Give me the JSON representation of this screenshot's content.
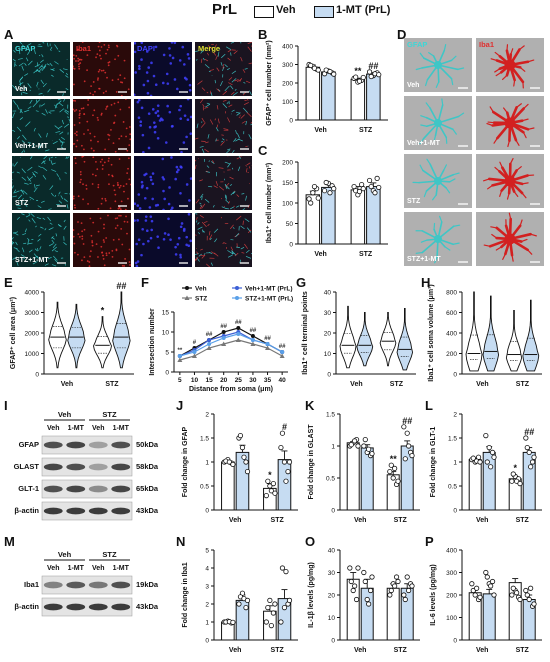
{
  "figure": {
    "title": "PrL",
    "legend": [
      {
        "label": "Veh",
        "color": "#ffffff"
      },
      {
        "label": "1-MT (PrL)",
        "color": "#c6dcf2"
      }
    ],
    "panel_letters": [
      "A",
      "B",
      "C",
      "D",
      "E",
      "F",
      "G",
      "H",
      "I",
      "J",
      "K",
      "L",
      "M",
      "N",
      "O",
      "P"
    ],
    "colors": {
      "veh": "#ffffff",
      "mt": "#c6dcf2",
      "gfap": "#3fc6c6",
      "iba1": "#d22020",
      "dapi": "#2222cc"
    }
  },
  "panel_a": {
    "channels": [
      "GFAP",
      "Iba1",
      "DAPI",
      "Merge"
    ],
    "channel_colors": [
      "#3fd6d6",
      "#e03030",
      "#4040ff",
      "#e0e030"
    ],
    "rows": [
      "Veh",
      "Veh+1-MT",
      "STZ",
      "STZ+1-MT"
    ]
  },
  "panel_d": {
    "channels": [
      "GFAP",
      "Iba1"
    ],
    "rows": [
      "Veh",
      "Veh+1-MT",
      "STZ",
      "STZ+1-MT"
    ]
  },
  "blots_i": {
    "groups": [
      "Veh",
      "STZ"
    ],
    "lanes": [
      "Veh",
      "1-MT",
      "Veh",
      "1-MT"
    ],
    "proteins": [
      {
        "name": "GFAP",
        "kda": "50kDa"
      },
      {
        "name": "GLAST",
        "kda": "58kDa"
      },
      {
        "name": "GLT-1",
        "kda": "65kDa"
      },
      {
        "name": "β-actin",
        "kda": "43kDa"
      }
    ]
  },
  "blots_m": {
    "groups": [
      "Veh",
      "STZ"
    ],
    "lanes": [
      "Veh",
      "1-MT",
      "Veh",
      "1-MT"
    ],
    "proteins": [
      {
        "name": "Iba1",
        "kda": "19kDa"
      },
      {
        "name": "β-actin",
        "kda": "43kDa"
      }
    ]
  },
  "chart_data": [
    {
      "panel": "B",
      "type": "bar",
      "categories": [
        "Veh",
        "STZ"
      ],
      "series": [
        {
          "name": "Veh",
          "values": [
            285,
            220
          ]
        },
        {
          "name": "1-MT (PrL)",
          "values": [
            260,
            248
          ]
        }
      ],
      "points": [
        [
          [
            300,
            290,
            275,
            295,
            280,
            270
          ],
          [
            250,
            265,
            255,
            270,
            262,
            248
          ]
        ],
        [
          [
            225,
            205,
            215,
            232,
            210,
            230
          ],
          [
            260,
            240,
            255,
            235,
            250,
            245
          ]
        ]
      ],
      "error": [
        [
          12,
          6
        ],
        [
          9,
          8
        ]
      ],
      "ylabel": "GFAP⁺ cell number (mm²)",
      "ylim": [
        0,
        400
      ],
      "yticks": [
        0,
        100,
        200,
        300,
        400
      ],
      "annotations": [
        {
          "text": "**",
          "cat": 1,
          "series": 0
        },
        {
          "text": "##",
          "cat": 1,
          "series": 1
        }
      ]
    },
    {
      "panel": "C",
      "type": "bar",
      "categories": [
        "Veh",
        "STZ"
      ],
      "series": [
        {
          "name": "Veh",
          "values": [
            120,
            132
          ]
        },
        {
          "name": "1-MT (PrL)",
          "values": [
            138,
            140
          ]
        }
      ],
      "points": [
        [
          [
            110,
            125,
            135,
            100,
            140,
            112
          ],
          [
            130,
            148,
            142,
            150,
            125,
            135
          ]
        ],
        [
          [
            140,
            120,
            145,
            130,
            128,
            135
          ],
          [
            155,
            130,
            160,
            140,
            125,
            138
          ]
        ]
      ],
      "error": [
        [
          9,
          8
        ],
        [
          7,
          9
        ]
      ],
      "ylabel": "Iba1⁺ cell number (mm²)",
      "ylim": [
        0,
        200
      ],
      "yticks": [
        0,
        50,
        100,
        150,
        200
      ],
      "annotations": []
    },
    {
      "panel": "E",
      "type": "violin",
      "categories": [
        "Veh",
        "STZ"
      ],
      "series": [
        "Veh",
        "1-MT (PrL)"
      ],
      "medians": [
        [
          1800,
          1800
        ],
        [
          1400,
          1800
        ]
      ],
      "range": [
        [
          [
            300,
            3500
          ],
          [
            300,
            3400
          ]
        ],
        [
          [
            300,
            2800
          ],
          [
            300,
            4000
          ]
        ]
      ],
      "ylabel": "GFAP⁺ cell area (μm²)",
      "ylim": [
        0,
        4000
      ],
      "yticks": [
        0,
        1000,
        2000,
        3000,
        4000
      ],
      "annotations": [
        {
          "text": "*",
          "cat": 1,
          "series": 0
        },
        {
          "text": "##",
          "cat": 1,
          "series": 1
        }
      ]
    },
    {
      "panel": "F",
      "type": "line",
      "x": [
        5,
        10,
        15,
        20,
        25,
        30,
        35,
        40
      ],
      "series": [
        {
          "name": "Veh",
          "color": "#111111",
          "values": [
            4,
            6,
            8,
            10,
            11,
            9,
            7,
            5
          ]
        },
        {
          "name": "STZ",
          "color": "#777777",
          "values": [
            3,
            4,
            6,
            7,
            8,
            7,
            6,
            4
          ]
        },
        {
          "name": "Veh+1-MT (PrL)",
          "color": "#3b5fd6",
          "values": [
            4,
            5.5,
            8,
            9,
            10,
            8,
            7,
            5
          ]
        },
        {
          "name": "STZ+1-MT (PrL)",
          "color": "#5aa0e8",
          "values": [
            4,
            5,
            7,
            8.5,
            9.5,
            8,
            7,
            5
          ]
        }
      ],
      "xlabel": "Distance from soma (μm)",
      "ylabel": "Intersection number",
      "ylim": [
        0,
        15
      ],
      "yticks": [
        0,
        5,
        10,
        15
      ],
      "annotations": [
        "**",
        "#",
        "##",
        "##",
        "##",
        "##",
        "##",
        "##"
      ]
    },
    {
      "panel": "G",
      "type": "violin",
      "categories": [
        "Veh",
        "STZ"
      ],
      "series": [
        "Veh",
        "1-MT (PrL)"
      ],
      "medians": [
        [
          14,
          14
        ],
        [
          16,
          12
        ]
      ],
      "range": [
        [
          [
            3,
            33
          ],
          [
            4,
            30
          ]
        ],
        [
          [
            4,
            30
          ],
          [
            2,
            32
          ]
        ]
      ],
      "ylabel": "Iba1⁺ cell terminal points",
      "ylim": [
        0,
        40
      ],
      "yticks": [
        0,
        10,
        20,
        30,
        40
      ],
      "annotations": []
    },
    {
      "panel": "H",
      "type": "violin",
      "categories": [
        "Veh",
        "STZ"
      ],
      "series": [
        "Veh",
        "1-MT (PrL)"
      ],
      "medians": [
        [
          200,
          220
        ],
        [
          190,
          190
        ]
      ],
      "range": [
        [
          [
            30,
            800
          ],
          [
            30,
            760
          ]
        ],
        [
          [
            30,
            620
          ],
          [
            30,
            720
          ]
        ]
      ],
      "ylabel": "Iba1⁺ cell soma volume (μm³)",
      "ylim": [
        0,
        800
      ],
      "yticks": [
        0,
        200,
        400,
        600,
        800
      ],
      "annotations": []
    },
    {
      "panel": "J",
      "type": "bar",
      "categories": [
        "Veh",
        "STZ"
      ],
      "series": [
        {
          "name": "Veh",
          "values": [
            1.0,
            0.45
          ]
        },
        {
          "name": "1-MT (PrL)",
          "values": [
            1.2,
            1.05
          ]
        }
      ],
      "points": [
        [
          [
            1.0,
            1.05,
            0.98,
            1.02,
            1.0,
            0.95
          ],
          [
            1.5,
            1.3,
            1.0,
            1.55,
            1.1,
            0.8
          ]
        ],
        [
          [
            0.3,
            0.5,
            0.55,
            0.6,
            0.4,
            0.35
          ],
          [
            1.3,
            1.0,
            0.8,
            1.6,
            0.6,
            1.0
          ]
        ]
      ],
      "error": [
        [
          0.03,
          0.1
        ],
        [
          0.15,
          0.18
        ]
      ],
      "ylabel": "Fold change in GFAP",
      "ylim": [
        0,
        2.0
      ],
      "yticks": [
        0.0,
        0.5,
        1.0,
        1.5,
        2.0
      ],
      "annotations": [
        {
          "text": "*",
          "cat": 1,
          "series": 0
        },
        {
          "text": "#",
          "cat": 1,
          "series": 1
        }
      ]
    },
    {
      "panel": "K",
      "type": "bar",
      "categories": [
        "Veh",
        "STZ"
      ],
      "series": [
        {
          "name": "Veh",
          "values": [
            1.05,
            0.55
          ]
        },
        {
          "name": "1-MT (PrL)",
          "values": [
            0.97,
            1.0
          ]
        }
      ],
      "points": [
        [
          [
            1.0,
            1.05,
            1.1,
            1.02,
            1.08,
            1.0
          ],
          [
            1.0,
            0.9,
            0.85,
            1.1,
            0.95,
            0.88
          ]
        ],
        [
          [
            0.6,
            0.5,
            0.4,
            0.7,
            0.65,
            0.45
          ],
          [
            1.3,
            1.2,
            0.9,
            0.8,
            1.0,
            0.85
          ]
        ]
      ],
      "error": [
        [
          0.02,
          0.05
        ],
        [
          0.05,
          0.08
        ]
      ],
      "ylabel": "Fold change in GLAST",
      "ylim": [
        0,
        1.5
      ],
      "yticks": [
        0.0,
        0.5,
        1.0,
        1.5
      ],
      "annotations": [
        {
          "text": "**",
          "cat": 1,
          "series": 0
        },
        {
          "text": "##",
          "cat": 1,
          "series": 1
        }
      ]
    },
    {
      "panel": "L",
      "type": "bar",
      "categories": [
        "Veh",
        "STZ"
      ],
      "series": [
        {
          "name": "Veh",
          "values": [
            1.05,
            0.65
          ]
        },
        {
          "name": "1-MT (PrL)",
          "values": [
            1.2,
            1.2
          ]
        }
      ],
      "points": [
        [
          [
            1.05,
            1.0,
            1.1,
            1.08,
            1.02,
            1.0
          ],
          [
            1.55,
            1.3,
            1.2,
            1.0,
            0.9,
            1.1
          ]
        ],
        [
          [
            0.6,
            0.7,
            0.65,
            0.75,
            0.6,
            0.55
          ],
          [
            1.5,
            1.2,
            1.0,
            1.3,
            0.9,
            1.1
          ]
        ]
      ],
      "error": [
        [
          0.03,
          0.05
        ],
        [
          0.12,
          0.1
        ]
      ],
      "ylabel": "Fold change in GLT-1",
      "ylim": [
        0,
        2.0
      ],
      "yticks": [
        0.0,
        0.5,
        1.0,
        1.5,
        2.0
      ],
      "annotations": [
        {
          "text": "*",
          "cat": 1,
          "series": 0
        },
        {
          "text": "##",
          "cat": 1,
          "series": 1
        }
      ]
    },
    {
      "panel": "N",
      "type": "bar",
      "categories": [
        "Veh",
        "STZ"
      ],
      "series": [
        {
          "name": "Veh",
          "values": [
            1.0,
            1.6
          ]
        },
        {
          "name": "1-MT (PrL)",
          "values": [
            2.2,
            2.3
          ]
        }
      ],
      "points": [
        [
          [
            1.0,
            1.05,
            0.95,
            1.0,
            1.02,
            0.98
          ],
          [
            2.0,
            2.6,
            1.8,
            2.4,
            2.3,
            2.2
          ]
        ],
        [
          [
            1.0,
            2.2,
            1.5,
            1.8,
            0.8,
            2.0
          ],
          [
            1.0,
            1.8,
            2.0,
            4.0,
            3.8,
            2.2
          ]
        ]
      ],
      "error": [
        [
          0.03,
          0.3
        ],
        [
          0.3,
          0.5
        ]
      ],
      "ylabel": "Fold change in Iba1",
      "ylim": [
        0,
        5
      ],
      "yticks": [
        0,
        1,
        2,
        3,
        4,
        5
      ],
      "annotations": []
    },
    {
      "panel": "O",
      "type": "bar",
      "categories": [
        "Veh",
        "STZ"
      ],
      "series": [
        {
          "name": "Veh",
          "values": [
            27,
            23
          ]
        },
        {
          "name": "1-MT (PrL)",
          "values": [
            23,
            23
          ]
        }
      ],
      "points": [
        [
          [
            32,
            22,
            18,
            26,
            24,
            32
          ],
          [
            30,
            18,
            22,
            26,
            16,
            28
          ]
        ],
        [
          [
            20,
            25,
            28,
            22,
            24,
            26
          ],
          [
            20,
            28,
            25,
            18,
            22,
            24
          ]
        ]
      ],
      "error": [
        [
          3,
          2
        ],
        [
          4,
          2
        ]
      ],
      "ylabel": "IL-1β levels (pg/mg)",
      "ylim": [
        0,
        40
      ],
      "yticks": [
        0,
        10,
        20,
        30,
        40
      ],
      "annotations": []
    },
    {
      "panel": "P",
      "type": "bar",
      "categories": [
        "Veh",
        "STZ"
      ],
      "series": [
        {
          "name": "Veh",
          "values": [
            210,
            255
          ]
        },
        {
          "name": "1-MT (PrL)",
          "values": [
            205,
            180
          ]
        }
      ],
      "points": [
        [
          [
            250,
            200,
            180,
            220,
            230,
            190
          ],
          [
            300,
            250,
            260,
            280,
            240,
            200
          ]
        ],
        [
          [
            200,
            220,
            190,
            230,
            210,
            180
          ],
          [
            220,
            180,
            150,
            200,
            230,
            160
          ]
        ]
      ],
      "error": [
        [
          15,
          18
        ],
        [
          20,
          20
        ]
      ],
      "ylabel": "IL-6 levels (pg/mg)",
      "ylim": [
        0,
        400
      ],
      "yticks": [
        0,
        100,
        200,
        300,
        400
      ],
      "annotations": []
    }
  ]
}
